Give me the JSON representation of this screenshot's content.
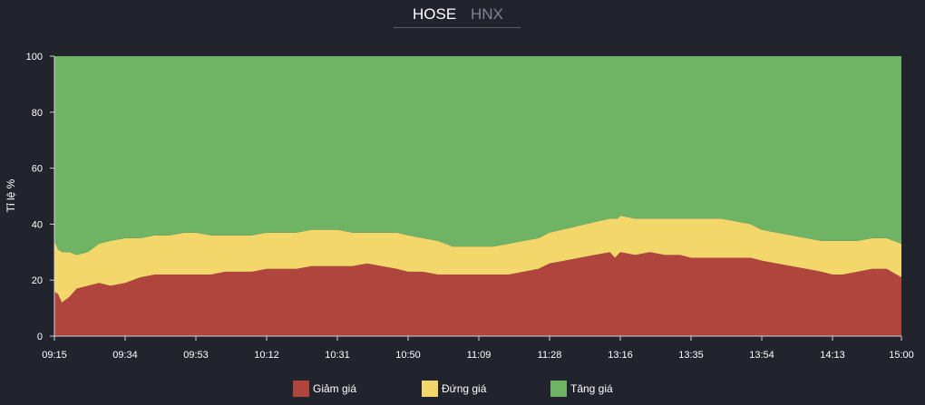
{
  "tabs": [
    {
      "label": "HOSE",
      "active": true
    },
    {
      "label": "HNX",
      "active": false
    }
  ],
  "chart_data": {
    "type": "area",
    "stacked": true,
    "title": "",
    "xlabel": "",
    "ylabel": "Tỉ lệ %",
    "ylim": [
      0,
      100
    ],
    "yticks": [
      0,
      20,
      40,
      60,
      80,
      100
    ],
    "x_ticks": [
      "09:15",
      "09:34",
      "09:53",
      "10:12",
      "10:31",
      "10:50",
      "11:09",
      "11:28",
      "13:16",
      "13:35",
      "13:54",
      "14:13",
      "15:00"
    ],
    "x": [
      "09:15",
      "09:16",
      "09:17",
      "09:19",
      "09:21",
      "09:24",
      "09:27",
      "09:30",
      "09:34",
      "09:38",
      "09:42",
      "09:46",
      "09:50",
      "09:53",
      "09:57",
      "10:01",
      "10:05",
      "10:08",
      "10:12",
      "10:16",
      "10:20",
      "10:24",
      "10:28",
      "10:31",
      "10:35",
      "10:39",
      "10:43",
      "10:47",
      "10:50",
      "10:54",
      "10:58",
      "11:02",
      "11:06",
      "11:09",
      "11:13",
      "11:17",
      "11:21",
      "11:25",
      "11:28",
      "13:00",
      "13:04",
      "13:08",
      "13:12",
      "13:16",
      "13:20",
      "13:24",
      "13:28",
      "13:32",
      "13:35",
      "13:39",
      "13:43",
      "13:47",
      "13:51",
      "13:54",
      "13:58",
      "14:02",
      "14:06",
      "14:10",
      "14:13",
      "14:20",
      "14:30",
      "14:40",
      "14:50",
      "15:00"
    ],
    "series": [
      {
        "name": "Giảm giá",
        "color": "#b0453d",
        "values": [
          16,
          15,
          12,
          14,
          17,
          18,
          19,
          18,
          19,
          21,
          22,
          22,
          22,
          22,
          22,
          23,
          23,
          23,
          24,
          24,
          24,
          25,
          25,
          25,
          25,
          26,
          25,
          24,
          23,
          23,
          22,
          22,
          22,
          22,
          22,
          22,
          23,
          24,
          26,
          30,
          29,
          28,
          29,
          30,
          29,
          30,
          29,
          29,
          28,
          28,
          28,
          28,
          28,
          27,
          26,
          25,
          24,
          23,
          22,
          22,
          23,
          24,
          24,
          21
        ]
      },
      {
        "name": "Đứng giá",
        "color": "#f4d76b",
        "values": [
          18,
          16,
          18,
          16,
          12,
          12,
          14,
          16,
          16,
          14,
          14,
          14,
          15,
          15,
          14,
          13,
          13,
          13,
          13,
          13,
          13,
          13,
          13,
          13,
          12,
          11,
          12,
          13,
          13,
          12,
          12,
          10,
          10,
          10,
          10,
          11,
          11,
          11,
          11,
          12,
          13,
          14,
          13,
          13,
          13,
          12,
          13,
          13,
          14,
          14,
          14,
          13,
          12,
          11,
          11,
          11,
          11,
          11,
          12,
          12,
          11,
          11,
          11,
          12
        ]
      },
      {
        "name": "Tăng giá",
        "color": "#6fb365",
        "values": [
          66,
          69,
          70,
          70,
          71,
          70,
          67,
          66,
          65,
          65,
          64,
          64,
          63,
          63,
          64,
          64,
          64,
          64,
          63,
          63,
          63,
          62,
          62,
          62,
          63,
          63,
          63,
          63,
          64,
          65,
          66,
          68,
          68,
          68,
          68,
          67,
          66,
          65,
          63,
          58,
          58,
          58,
          58,
          57,
          58,
          58,
          58,
          58,
          58,
          58,
          58,
          59,
          60,
          62,
          63,
          64,
          65,
          66,
          66,
          66,
          66,
          65,
          65,
          67
        ]
      }
    ],
    "legend_position": "bottom-center",
    "grid": false
  }
}
